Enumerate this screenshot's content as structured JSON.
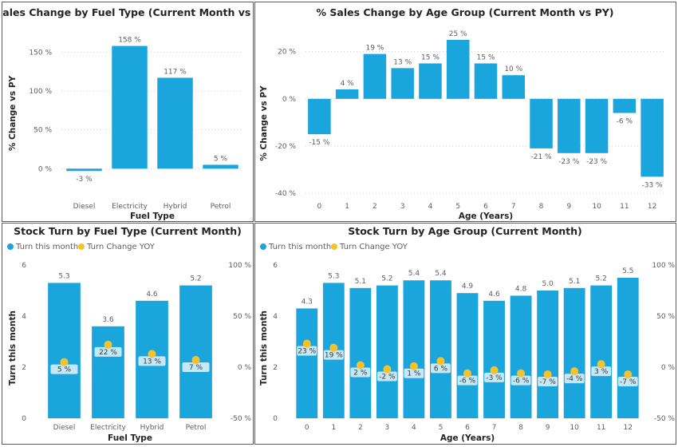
{
  "colors": {
    "bar": "#1AA5DC",
    "dot": "#F5C22B",
    "label_bg": "#C6E7F5"
  },
  "chart_data": [
    {
      "id": "fuel-sales",
      "type": "bar",
      "title": "% Sales Change by Fuel Type (Current Month vs PY)",
      "xlabel": "Fuel Type",
      "ylabel": "% Change vs PY",
      "categories": [
        "Diesel",
        "Electricity",
        "Hybrid",
        "Petrol"
      ],
      "values": [
        -3,
        158,
        117,
        5
      ],
      "value_labels": [
        "-3 %",
        "158 %",
        "117 %",
        "5 %"
      ],
      "yticks": [
        0,
        50,
        100,
        150
      ],
      "ytick_labels": [
        "0 %",
        "50 %",
        "100 %",
        "150 %"
      ],
      "ylim": [
        -12,
        175
      ],
      "grid": true
    },
    {
      "id": "age-sales",
      "type": "bar",
      "title": "% Sales Change by Age Group (Current Month vs PY)",
      "xlabel": "Age (Years)",
      "ylabel": "% Change vs PY",
      "categories": [
        "0",
        "1",
        "2",
        "3",
        "4",
        "5",
        "6",
        "7",
        "8",
        "9",
        "10",
        "11",
        "12"
      ],
      "values": [
        -15,
        4,
        19,
        13,
        15,
        25,
        15,
        10,
        -21,
        -23,
        -23,
        -6,
        -33
      ],
      "value_labels": [
        "-15 %",
        "4 %",
        "19 %",
        "13 %",
        "15 %",
        "25 %",
        "15 %",
        "10 %",
        "-21 %",
        "-23 %",
        "-23 %",
        "-6 %",
        "-33 %"
      ],
      "yticks": [
        -40,
        -20,
        0,
        20
      ],
      "ytick_labels": [
        "-40 %",
        "-20 %",
        "0 %",
        "20 %"
      ],
      "ylim": [
        -42,
        28
      ],
      "grid": true
    },
    {
      "id": "fuel-turn",
      "type": "bar+scatter",
      "title": "Stock Turn by Fuel Type (Current Month)",
      "xlabel": "Fuel Type",
      "ylabel": "Turn this month",
      "legend": [
        "Turn this month",
        "Turn Change YOY"
      ],
      "legend_position": "top-left",
      "categories": [
        "Diesel",
        "Electricity",
        "Hybrid",
        "Petrol"
      ],
      "turn": [
        5.3,
        3.6,
        4.6,
        5.2
      ],
      "turn_labels": [
        "5.3",
        "3.6",
        "4.6",
        "5.2"
      ],
      "change_yoy": [
        5,
        22,
        13,
        7
      ],
      "change_labels": [
        "5 %",
        "22 %",
        "13 %",
        "7 %"
      ],
      "yticks": [
        0,
        2,
        4,
        6
      ],
      "ytick_labels": [
        "0",
        "2",
        "4",
        "6"
      ],
      "ylim": [
        0,
        6
      ],
      "y2ticks": [
        -50,
        0,
        50,
        100
      ],
      "y2tick_labels": [
        "-50 %",
        "0 %",
        "50 %",
        "100 %"
      ],
      "y2lim": [
        -50,
        100
      ]
    },
    {
      "id": "age-turn",
      "type": "bar+scatter",
      "title": "Stock Turn by Age Group (Current Month)",
      "xlabel": "Age (Years)",
      "ylabel": "Turn this month",
      "legend": [
        "Turn this month",
        "Turn Change YOY"
      ],
      "legend_position": "top-left",
      "categories": [
        "0",
        "1",
        "2",
        "3",
        "4",
        "5",
        "6",
        "7",
        "8",
        "9",
        "10",
        "11",
        "12"
      ],
      "turn": [
        4.3,
        5.3,
        5.1,
        5.2,
        5.4,
        5.4,
        4.9,
        4.6,
        4.8,
        5.0,
        5.1,
        5.2,
        5.5
      ],
      "turn_labels": [
        "4.3",
        "5.3",
        "5.1",
        "5.2",
        "5.4",
        "5.4",
        "4.9",
        "4.6",
        "4.8",
        "5.0",
        "5.1",
        "5.2",
        "5.5"
      ],
      "change_yoy": [
        23,
        19,
        2,
        -2,
        1,
        6,
        -6,
        -3,
        -6,
        -7,
        -4,
        3,
        -7
      ],
      "change_labels": [
        "23 %",
        "19 %",
        "2 %",
        "-2 %",
        "1 %",
        "6 %",
        "-6 %",
        "-3 %",
        "-6 %",
        "-7 %",
        "-4 %",
        "3 %",
        "-7 %"
      ],
      "yticks": [
        0,
        2,
        4,
        6
      ],
      "ytick_labels": [
        "0",
        "2",
        "4",
        "6"
      ],
      "ylim": [
        0,
        6
      ],
      "y2ticks": [
        -50,
        0,
        50,
        100
      ],
      "y2tick_labels": [
        "-50 %",
        "0 %",
        "50 %",
        "100 %"
      ],
      "y2lim": [
        -50,
        100
      ]
    }
  ]
}
